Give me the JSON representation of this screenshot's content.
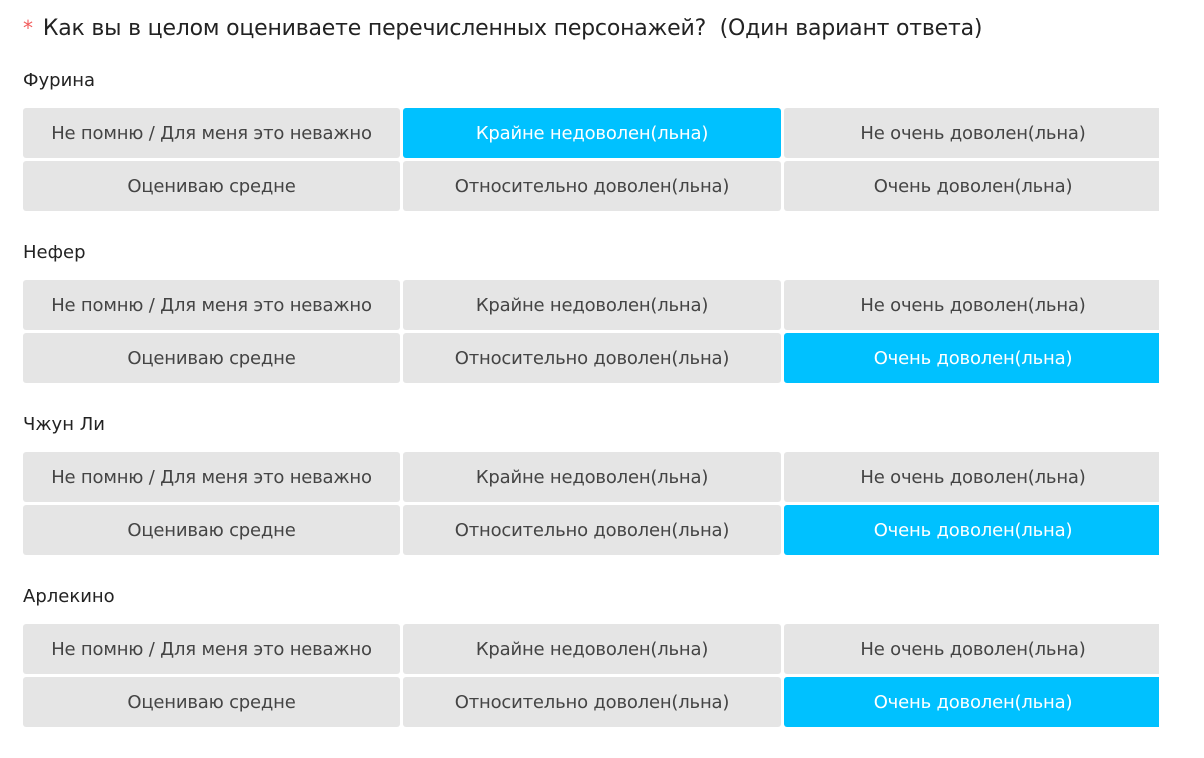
{
  "question": {
    "required_mark": "*",
    "text": "Как вы в целом оцениваете перечисленных персонажей?",
    "hint": "(Один вариант ответа)"
  },
  "options": [
    "Не помню / Для меня это неважно",
    "Крайне недоволен(льна)",
    "Не очень доволен(льна)",
    "Оцениваю средне",
    "Относительно доволен(льна)",
    "Очень доволен(льна)"
  ],
  "characters": [
    {
      "name": "Фурина",
      "selected": 1
    },
    {
      "name": "Нефер",
      "selected": 5
    },
    {
      "name": "Чжун Ли",
      "selected": 5
    },
    {
      "name": "Арлекино",
      "selected": 5
    }
  ],
  "colors": {
    "selected": "#00c1ff",
    "unselected": "#e5e5e5",
    "required": "#f25c5c"
  }
}
